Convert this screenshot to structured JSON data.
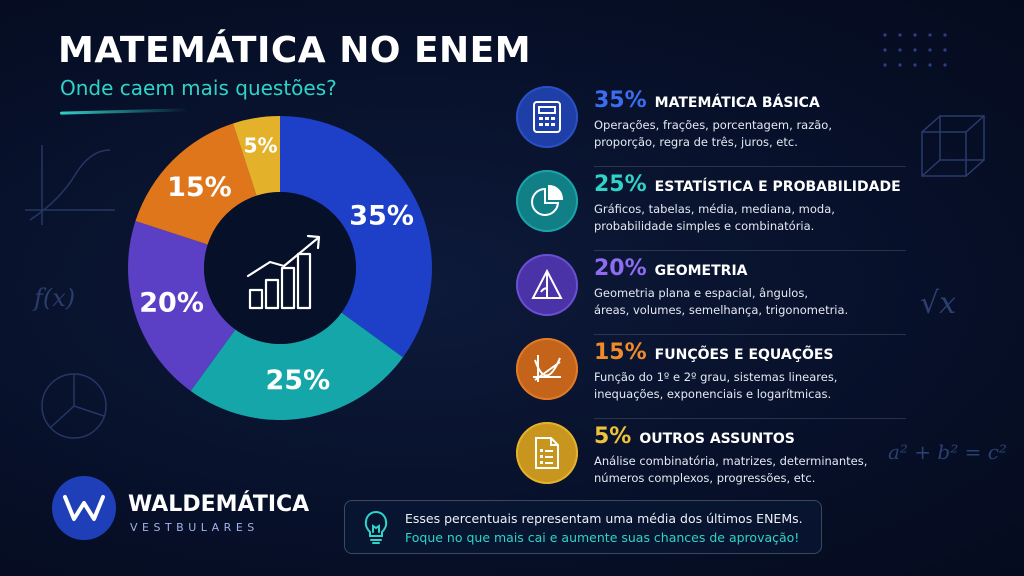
{
  "header": {
    "title": "MATEMÁTICA NO ENEM",
    "subtitle": "Onde caem mais questões?"
  },
  "colors": {
    "blue": "#1e40c8",
    "teal": "#14a6a8",
    "purple": "#5b3fc4",
    "orange": "#e0761c",
    "yellow": "#e3b22a",
    "accent": "#2fd3c8"
  },
  "chart_data": {
    "type": "pie",
    "categories": [
      "Matemática Básica",
      "Estatística e Probabilidade",
      "Geometria",
      "Funções e Equações",
      "Outros Assuntos"
    ],
    "values": [
      35,
      25,
      20,
      15,
      5
    ],
    "labels": [
      "35%",
      "25%",
      "20%",
      "15%",
      "5%"
    ],
    "colors": [
      "#1e40c8",
      "#14a6a8",
      "#5b3fc4",
      "#e0761c",
      "#e3b22a"
    ],
    "center_icon": "growth-chart-icon"
  },
  "categories": [
    {
      "pct": "35%",
      "title": "MATEMÁTICA BÁSICA",
      "line1": "Operações, frações, porcentagem, razão,",
      "line2": "proporção, regra de três, juros, etc.",
      "icon": "calculator-icon",
      "color": "#3b6cf2",
      "bg": "#1e3ea8"
    },
    {
      "pct": "25%",
      "title": "ESTATÍSTICA E PROBABILIDADE",
      "line1": "Gráficos, tabelas, média, mediana, moda,",
      "line2": "probabilidade simples e combinatória.",
      "icon": "pie-chart-icon",
      "color": "#2fd3c8",
      "bg": "#117f86"
    },
    {
      "pct": "20%",
      "title": "GEOMETRIA",
      "line1": "Geometria plana e espacial, ângulos,",
      "line2": "áreas, volumes, semelhança, trigonometria.",
      "icon": "triangle-ruler-icon",
      "color": "#8e6cf2",
      "bg": "#4a33a6"
    },
    {
      "pct": "15%",
      "title": "FUNÇÕES E EQUAÇÕES",
      "line1": "Função do 1º e 2º grau, sistemas lineares,",
      "line2": "inequações, exponenciais e logarítmicas.",
      "icon": "function-graph-icon",
      "color": "#f08a2a",
      "bg": "#c4641a"
    },
    {
      "pct": "5%",
      "title": "OUTROS ASSUNTOS",
      "line1": "Análise combinatória, matrizes, determinantes,",
      "line2": "números complexos, progressões, etc.",
      "icon": "document-list-icon",
      "color": "#f0c23a",
      "bg": "#c8961e"
    }
  ],
  "brand": {
    "name": "WALDEMÁTICA",
    "tagline": "VESTBULARES",
    "logo_icon": "wm-logo-icon"
  },
  "note": {
    "line1": "Esses percentuais representam uma média dos últimos ENEMs.",
    "line2": "Foque no que mais cai e aumente suas chances de aprovação!",
    "icon": "lightbulb-icon"
  },
  "decorations": {
    "formula_fx": "f(x)",
    "formula_sqrt": "√x",
    "formula_pyth": "a² + b² = c²"
  }
}
